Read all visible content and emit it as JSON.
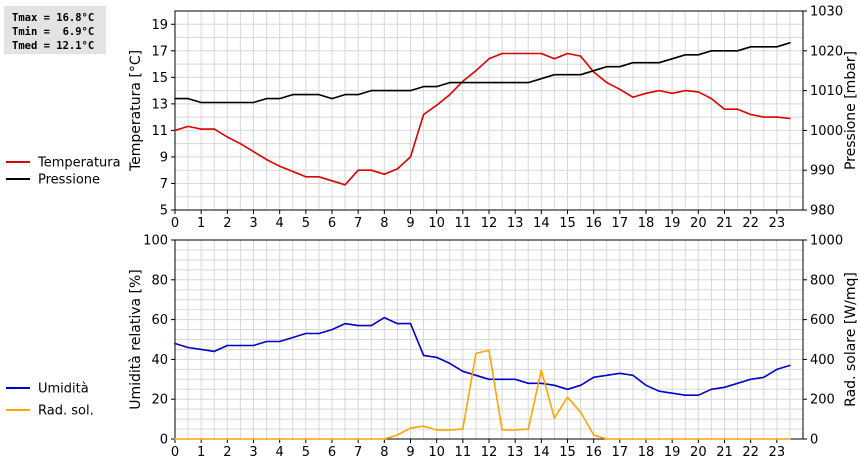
{
  "stats": {
    "tmax": "Tmax = 16.8°C",
    "tmin": "Tmin =  6.9°C",
    "tmed": "Tmed = 12.1°C"
  },
  "chart_data": [
    {
      "type": "line",
      "x_ticks": [
        "0",
        "1",
        "2",
        "3",
        "4",
        "5",
        "6",
        "7",
        "8",
        "9",
        "10",
        "11",
        "12",
        "13",
        "14",
        "15",
        "16",
        "17",
        "18",
        "19",
        "20",
        "21",
        "22",
        "23"
      ],
      "xlim": [
        0,
        24
      ],
      "y_left_label": "Temperatura [°C]",
      "y_left_ticks": [
        "5",
        "7",
        "9",
        "11",
        "13",
        "15",
        "17",
        "19"
      ],
      "y_left_lim": [
        5,
        20
      ],
      "y_right_label": "Pressione [mbar]",
      "y_right_ticks": [
        "980",
        "990",
        "1000",
        "1010",
        "1020",
        "1030"
      ],
      "y_right_lim": [
        980,
        1030
      ],
      "grid": true,
      "legend_position": "left",
      "series": [
        {
          "name": "Temperatura",
          "axis": "left",
          "color": "#dd0000",
          "x": [
            0,
            0.5,
            1,
            1.5,
            2,
            2.5,
            3,
            3.5,
            4,
            4.5,
            5,
            5.5,
            6,
            6.5,
            7,
            7.5,
            8,
            8.5,
            9,
            9.5,
            10,
            10.5,
            11,
            11.5,
            12,
            12.5,
            13,
            13.5,
            14,
            14.5,
            15,
            15.5,
            16,
            16.5,
            17,
            17.5,
            18,
            18.5,
            19,
            19.5,
            20,
            20.5,
            21,
            21.5,
            22,
            22.5,
            23,
            23.5
          ],
          "y": [
            11.0,
            11.3,
            11.1,
            11.1,
            10.5,
            10.0,
            9.4,
            8.8,
            8.3,
            7.9,
            7.5,
            7.5,
            7.2,
            6.9,
            8.0,
            8.0,
            7.7,
            8.1,
            9.0,
            12.2,
            12.9,
            13.7,
            14.7,
            15.5,
            16.4,
            16.8,
            16.8,
            16.8,
            16.8,
            16.4,
            16.8,
            16.6,
            15.4,
            14.6,
            14.1,
            13.5,
            13.8,
            14.0,
            13.8,
            14.0,
            13.9,
            13.4,
            12.6,
            12.6,
            12.2,
            12.0,
            12.0,
            11.9
          ]
        },
        {
          "name": "Pressione",
          "axis": "right",
          "color": "#000000",
          "x": [
            0,
            0.5,
            1,
            1.5,
            2,
            2.5,
            3,
            3.5,
            4,
            4.5,
            5,
            5.5,
            6,
            6.5,
            7,
            7.5,
            8,
            8.5,
            9,
            9.5,
            10,
            10.5,
            11,
            11.5,
            12,
            12.5,
            13,
            13.5,
            14,
            14.5,
            15,
            15.5,
            16,
            16.5,
            17,
            17.5,
            18,
            18.5,
            19,
            19.5,
            20,
            20.5,
            21,
            21.5,
            22,
            22.5,
            23,
            23.5
          ],
          "y": [
            1008,
            1008,
            1007,
            1007,
            1007,
            1007,
            1007,
            1008,
            1008,
            1009,
            1009,
            1009,
            1008,
            1009,
            1009,
            1010,
            1010,
            1010,
            1010,
            1011,
            1011,
            1012,
            1012,
            1012,
            1012,
            1012,
            1012,
            1012,
            1013,
            1014,
            1014,
            1014,
            1015,
            1016,
            1016,
            1017,
            1017,
            1017,
            1018,
            1019,
            1019,
            1020,
            1020,
            1020,
            1021,
            1021,
            1021,
            1022
          ]
        }
      ]
    },
    {
      "type": "line",
      "x_ticks": [
        "0",
        "1",
        "2",
        "3",
        "4",
        "5",
        "6",
        "7",
        "8",
        "9",
        "10",
        "11",
        "12",
        "13",
        "14",
        "15",
        "16",
        "17",
        "18",
        "19",
        "20",
        "21",
        "22",
        "23"
      ],
      "xlim": [
        0,
        24
      ],
      "y_left_label": "Umidità relativa [%]",
      "y_left_ticks": [
        "0",
        "20",
        "40",
        "60",
        "80",
        "100"
      ],
      "y_left_lim": [
        0,
        100
      ],
      "y_right_label": "Rad. solare [W/mq]",
      "y_right_ticks": [
        "0",
        "200",
        "400",
        "600",
        "800",
        "1000"
      ],
      "y_right_lim": [
        0,
        1000
      ],
      "grid": true,
      "legend_position": "left",
      "series": [
        {
          "name": "Umidità",
          "axis": "left",
          "color": "#0000cc",
          "x": [
            0,
            0.5,
            1,
            1.5,
            2,
            2.5,
            3,
            3.5,
            4,
            4.5,
            5,
            5.5,
            6,
            6.5,
            7,
            7.5,
            8,
            8.5,
            9,
            9.5,
            10,
            10.5,
            11,
            11.5,
            12,
            12.5,
            13,
            13.5,
            14,
            14.5,
            15,
            15.5,
            16,
            16.5,
            17,
            17.5,
            18,
            18.5,
            19,
            19.5,
            20,
            20.5,
            21,
            21.5,
            22,
            22.5,
            23,
            23.5
          ],
          "y": [
            48,
            46,
            45,
            44,
            47,
            47,
            47,
            49,
            49,
            51,
            53,
            53,
            55,
            58,
            57,
            57,
            61,
            58,
            58,
            42,
            41,
            38,
            34,
            32,
            30,
            30,
            30,
            28,
            28,
            27,
            25,
            27,
            31,
            32,
            33,
            32,
            27,
            24,
            23,
            22,
            22,
            25,
            26,
            28,
            30,
            31,
            35,
            37
          ]
        },
        {
          "name": "Rad. sol.",
          "axis": "right",
          "color": "#ffa500",
          "x": [
            0,
            0.5,
            1,
            1.5,
            2,
            2.5,
            3,
            3.5,
            4,
            4.5,
            5,
            5.5,
            6,
            6.5,
            7,
            7.5,
            8,
            8.5,
            9,
            9.5,
            10,
            10.5,
            11,
            11.5,
            12,
            12.5,
            13,
            13.5,
            14,
            14.5,
            15,
            15.5,
            16,
            16.5,
            17,
            17.5,
            18,
            18.5,
            19,
            19.5,
            20,
            20.5,
            21,
            21.5,
            22,
            22.5,
            23,
            23.5
          ],
          "y": [
            0,
            0,
            0,
            0,
            0,
            0,
            0,
            0,
            0,
            0,
            0,
            0,
            0,
            0,
            0,
            0,
            0,
            20,
            55,
            65,
            45,
            45,
            50,
            430,
            445,
            45,
            45,
            50,
            345,
            105,
            210,
            135,
            20,
            0,
            0,
            0,
            0,
            0,
            0,
            0,
            0,
            0,
            0,
            0,
            0,
            0,
            0,
            0
          ]
        }
      ]
    }
  ]
}
